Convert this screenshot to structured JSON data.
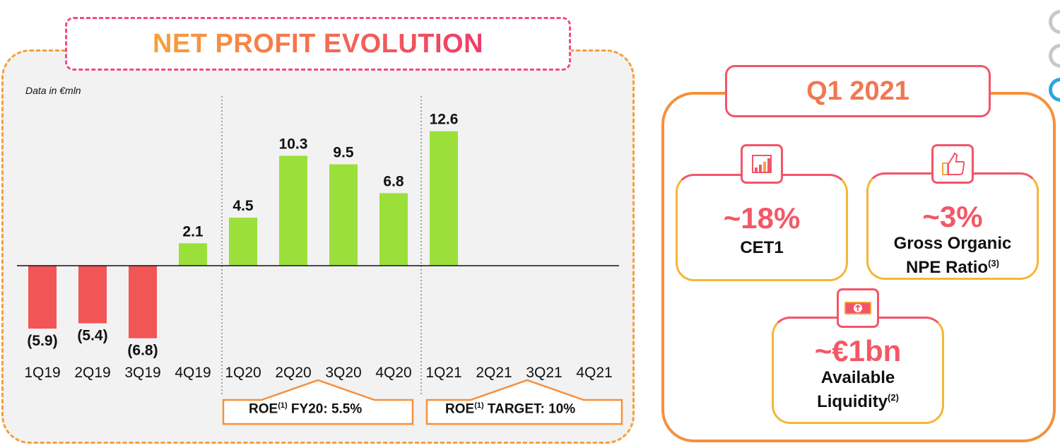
{
  "title": "NET PROFIT EVOLUTION",
  "data_note": "Data in €mln",
  "chart_data": {
    "type": "bar",
    "categories": [
      "1Q19",
      "2Q19",
      "3Q19",
      "4Q19",
      "1Q20",
      "2Q20",
      "3Q20",
      "4Q20",
      "1Q21",
      "2Q21",
      "3Q21",
      "4Q21"
    ],
    "values": [
      -5.9,
      -5.4,
      -6.8,
      2.1,
      4.5,
      10.3,
      9.5,
      6.8,
      12.6,
      null,
      null,
      null
    ],
    "value_labels": [
      "(5.9)",
      "(5.4)",
      "(6.8)",
      "2.1",
      "4.5",
      "10.3",
      "9.5",
      "6.8",
      "12.6",
      "",
      "",
      ""
    ],
    "title": "NET PROFIT EVOLUTION",
    "ylabel": "Data in €mln",
    "ylim": [
      -7,
      13
    ],
    "grid": false,
    "colors": {
      "positive": "#9be03a",
      "negative": "#f25555"
    }
  },
  "roe": [
    {
      "prefix": "ROE",
      "sup": "(1)",
      "text": " FY20: 5.5%"
    },
    {
      "prefix": "ROE",
      "sup": "(1)",
      "text": " TARGET: 10%"
    }
  ],
  "quarter": "Q1 2021",
  "kpis": [
    {
      "value": "~18%",
      "label1": "CET1",
      "label2": "",
      "sup": "",
      "icon": "bar-chart-icon"
    },
    {
      "value": "~3%",
      "label1": "Gross Organic",
      "label2": "NPE Ratio",
      "sup": "(3)",
      "icon": "thumbs-up-icon"
    },
    {
      "value": "~€1bn",
      "label1": "Available",
      "label2": "Liquidity",
      "sup": "(2)",
      "icon": "banknote-icon"
    }
  ],
  "colors": {
    "orange": "#f7a03a",
    "pink": "#f2556a",
    "green": "#9be03a",
    "red": "#f25555"
  }
}
